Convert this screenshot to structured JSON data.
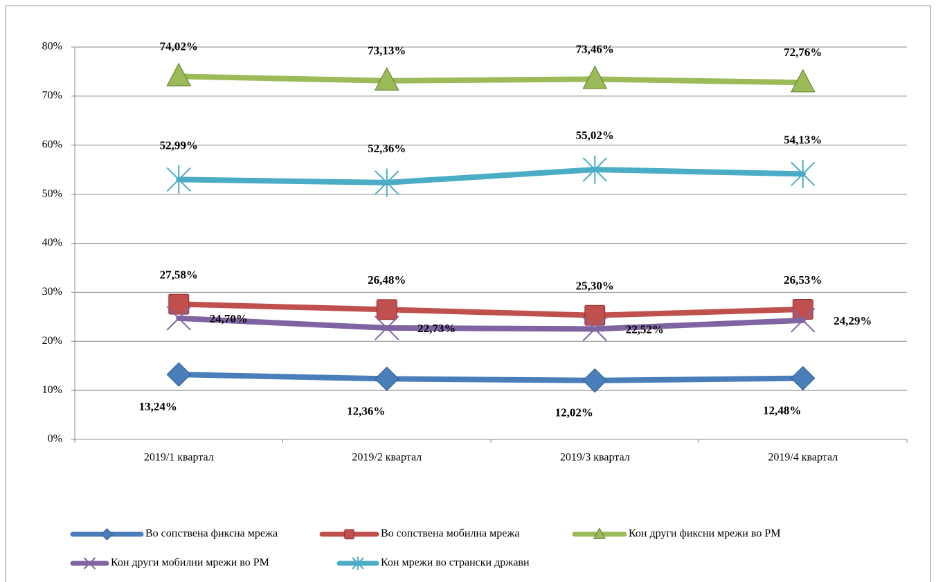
{
  "chart_data": {
    "type": "line",
    "categories": [
      "2019/1 квартал",
      "2019/2 квартал",
      "2019/3 квартал",
      "2019/4 квартал"
    ],
    "series": [
      {
        "name": "Во сопствена фиксна мрежа",
        "color": "#4a7ebb",
        "values": [
          13.24,
          12.36,
          12.02,
          12.48
        ],
        "value_labels": [
          "13,24%",
          "12,36%",
          "12,02%",
          "12,48%"
        ]
      },
      {
        "name": "Во сопствена мобилна мрежа",
        "color": "#c0504d",
        "values": [
          27.58,
          26.48,
          25.3,
          26.53
        ],
        "value_labels": [
          "27,58%",
          "26,48%",
          "25,30%",
          "26,53%"
        ]
      },
      {
        "name": "Кон други фиксни мрежи во РМ",
        "color": "#9bbb59",
        "values": [
          74.02,
          73.13,
          73.46,
          72.76
        ],
        "value_labels": [
          "74,02%",
          "73,13%",
          "73,46%",
          "72,76%"
        ]
      },
      {
        "name": "Кон други мобилни мрежи во РМ",
        "color": "#8064a2",
        "values": [
          24.7,
          22.73,
          22.52,
          24.29
        ],
        "value_labels": [
          "24,70%",
          "22,73%",
          "22,52%",
          "24,29%"
        ]
      },
      {
        "name": "Кон мрежи во странски држави",
        "color": "#4bacc6",
        "values": [
          52.99,
          52.36,
          55.02,
          54.13
        ],
        "value_labels": [
          "52,99%",
          "52,36%",
          "55,02%",
          "54,13%"
        ]
      }
    ],
    "ylim": [
      0,
      80
    ],
    "yticks": [
      {
        "value": 0,
        "label": "0%"
      },
      {
        "value": 10,
        "label": "10%"
      },
      {
        "value": 20,
        "label": "20%"
      },
      {
        "value": 30,
        "label": "30%"
      },
      {
        "value": 40,
        "label": "40%"
      },
      {
        "value": 50,
        "label": "50%"
      },
      {
        "value": 60,
        "label": "60%"
      },
      {
        "value": 70,
        "label": "70%"
      },
      {
        "value": 80,
        "label": "80%"
      }
    ],
    "grid": true
  }
}
